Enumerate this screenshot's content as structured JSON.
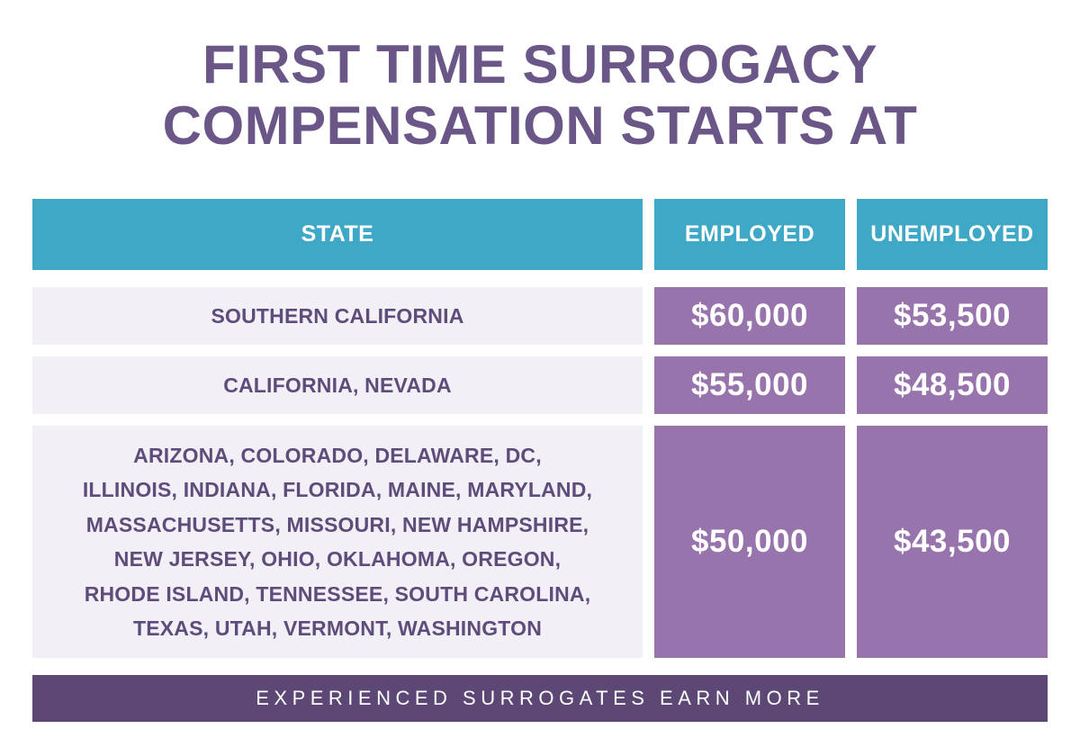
{
  "title": {
    "line1": "FIRST TIME SURROGACY",
    "line2": "COMPENSATION STARTS AT"
  },
  "table": {
    "headers": {
      "state": "STATE",
      "employed": "EMPLOYED",
      "unemployed": "UNEMPLOYED"
    },
    "rows": [
      {
        "state_lines": [
          "SOUTHERN CALIFORNIA"
        ],
        "employed": "$60,000",
        "unemployed": "$53,500"
      },
      {
        "state_lines": [
          "CALIFORNIA, NEVADA"
        ],
        "employed": "$55,000",
        "unemployed": "$48,500"
      },
      {
        "state_lines": [
          "ARIZONA, COLORADO, DELAWARE, DC,",
          "ILLINOIS, INDIANA, FLORIDA, MAINE, MARYLAND,",
          "MASSACHUSETTS, MISSOURI, NEW HAMPSHIRE,",
          "NEW JERSEY, OHIO, OKLAHOMA, OREGON,",
          "RHODE ISLAND, TENNESSEE, SOUTH CAROLINA,",
          "TEXAS, UTAH, VERMONT, WASHINGTON"
        ],
        "employed": "$50,000",
        "unemployed": "$43,500"
      }
    ]
  },
  "footer": {
    "text": "EXPERIENCED SURROGATES EARN MORE"
  },
  "colors": {
    "title": "#6a5788",
    "header_bg": "#3fa8c6",
    "state_bg": "#f2eff6",
    "state_text": "#5e4c7a",
    "money_bg": "#9874ad",
    "footer_bg": "#5c4775"
  },
  "chart_data": {
    "type": "table",
    "title": "FIRST TIME SURROGACY COMPENSATION STARTS AT",
    "columns": [
      "STATE",
      "EMPLOYED",
      "UNEMPLOYED"
    ],
    "rows": [
      [
        "SOUTHERN CALIFORNIA",
        60000,
        53500
      ],
      [
        "CALIFORNIA, NEVADA",
        55000,
        48500
      ],
      [
        "ARIZONA, COLORADO, DELAWARE, DC, ILLINOIS, INDIANA, FLORIDA, MAINE, MARYLAND, MASSACHUSETTS, MISSOURI, NEW HAMPSHIRE, NEW JERSEY, OHIO, OKLAHOMA, OREGON, RHODE ISLAND, TENNESSEE, SOUTH CAROLINA, TEXAS, UTAH, VERMONT, WASHINGTON",
        50000,
        43500
      ]
    ],
    "footnote": "EXPERIENCED SURROGATES EARN MORE"
  }
}
